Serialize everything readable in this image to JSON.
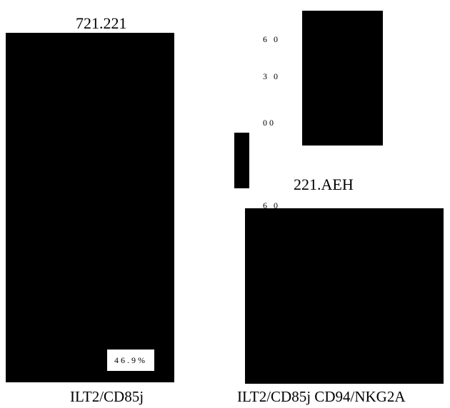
{
  "panels": {
    "left": {
      "title": "721.221",
      "percentage": "46.9%",
      "xlabel": "ILT2/CD85j"
    },
    "top_right": {
      "ticks": [
        "6 0",
        "3 0",
        "00"
      ]
    },
    "bottom_right": {
      "title": "221.AEH",
      "top_tick": "6 0",
      "xlabel": "ILT2/CD85j CD94/NKG2A"
    }
  }
}
